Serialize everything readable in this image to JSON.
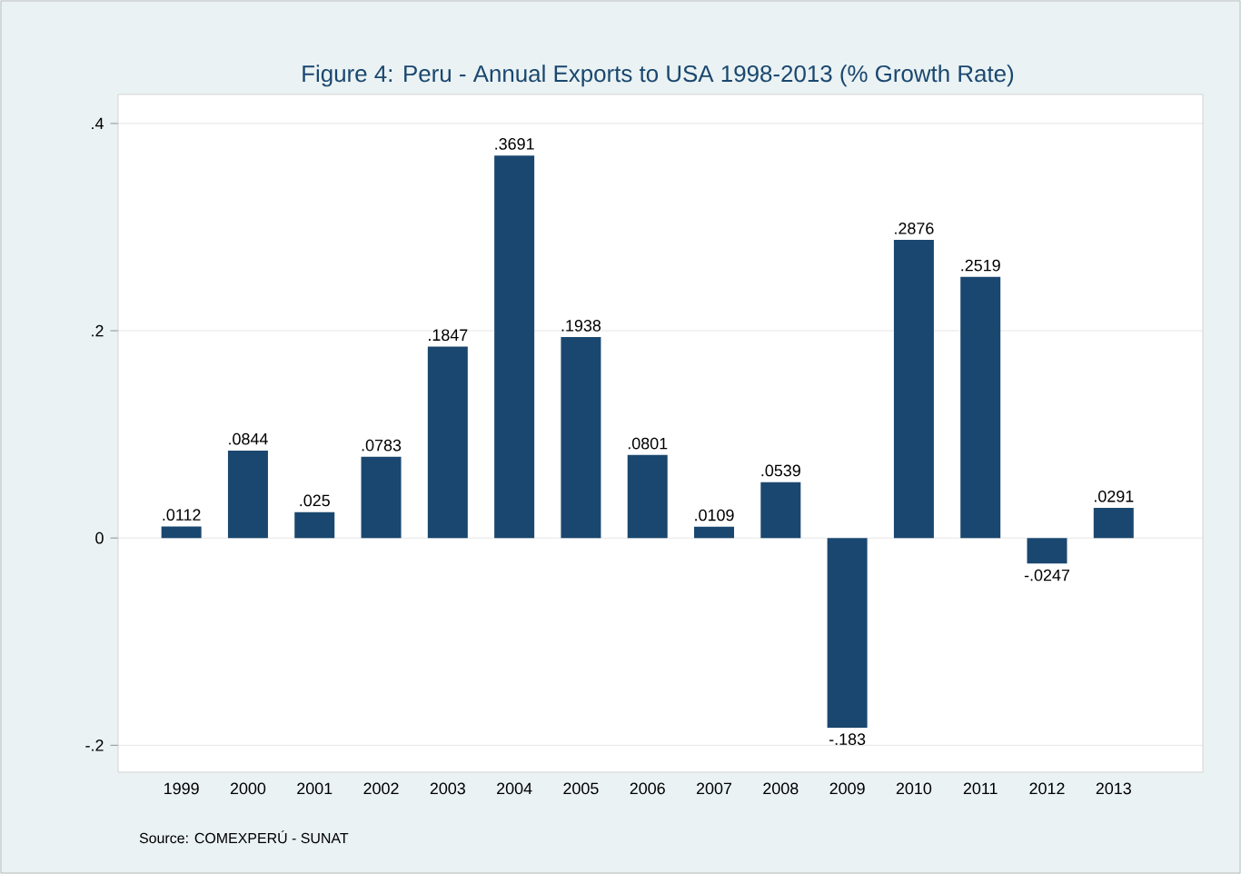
{
  "chart_data": {
    "type": "bar",
    "title": "Figure 4: Peru - Annual Exports to USA 1998-2013 (% Growth Rate)",
    "categories": [
      "1999",
      "2000",
      "2001",
      "2002",
      "2003",
      "2004",
      "2005",
      "2006",
      "2007",
      "2008",
      "2009",
      "2010",
      "2011",
      "2012",
      "2013"
    ],
    "values": [
      0.0112,
      0.0844,
      0.025,
      0.0783,
      0.1847,
      0.3691,
      0.1938,
      0.0801,
      0.0109,
      0.0539,
      -0.183,
      0.2876,
      0.2519,
      -0.0247,
      0.0291
    ],
    "value_labels": [
      ".0112",
      ".0844",
      ".025",
      ".0783",
      ".1847",
      ".3691",
      ".1938",
      ".0801",
      ".0109",
      ".0539",
      "-.183",
      ".2876",
      ".2519",
      "-.0247",
      ".0291"
    ],
    "color": "#1a476f",
    "ylim": [
      -0.226,
      0.428
    ],
    "yticks": [
      {
        "value": -0.2,
        "label": "-.2"
      },
      {
        "value": 0,
        "label": "0"
      },
      {
        "value": 0.2,
        "label": ".2"
      },
      {
        "value": 0.4,
        "label": ".4"
      }
    ],
    "grid": "y",
    "annotations": [
      "Source: COMEXPERÚ - SUNAT"
    ]
  }
}
